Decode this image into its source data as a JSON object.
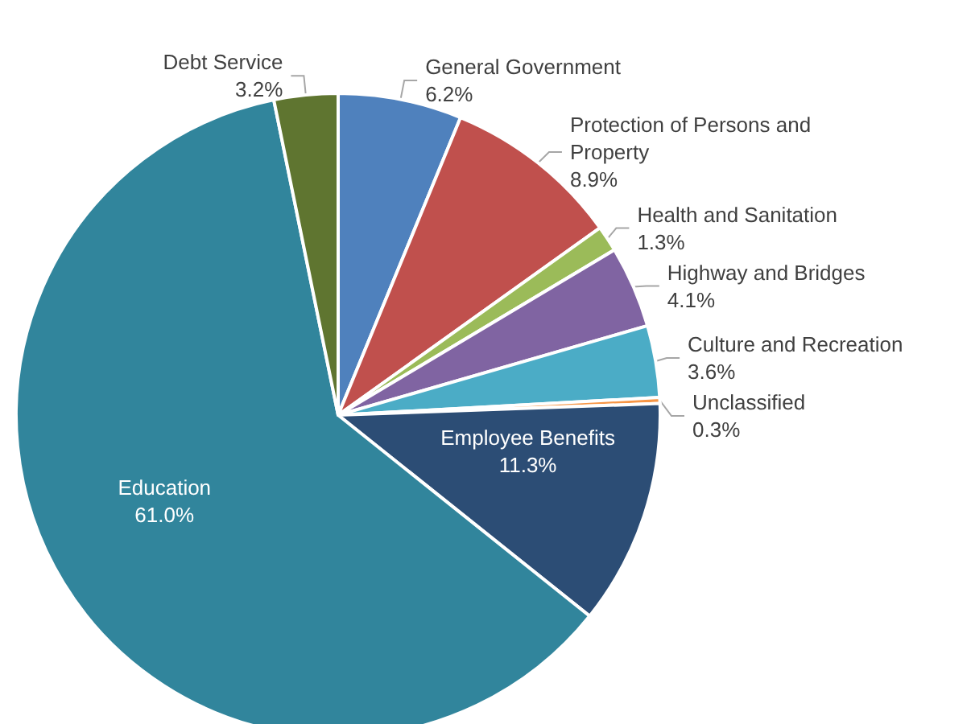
{
  "chart_data": {
    "type": "pie",
    "categories": [
      "General Government",
      "Protection of Persons and Property",
      "Health and Sanitation",
      "Highway and Bridges",
      "Culture and Recreation",
      "Unclassified",
      "Employee Benefits",
      "Education",
      "Debt Service"
    ],
    "values": [
      6.2,
      8.9,
      1.3,
      4.1,
      3.6,
      0.3,
      11.3,
      61.0,
      3.2
    ],
    "value_labels": [
      "6.2%",
      "8.9%",
      "1.3%",
      "4.1%",
      "3.6%",
      "0.3%",
      "11.3%",
      "61.0%",
      "3.2%"
    ],
    "colors": [
      "#4f81bd",
      "#c0504d",
      "#9bbb59",
      "#8064a2",
      "#4bacc6",
      "#f79646",
      "#2c4d75",
      "#31859c",
      "#5f7530"
    ],
    "legend": false
  }
}
